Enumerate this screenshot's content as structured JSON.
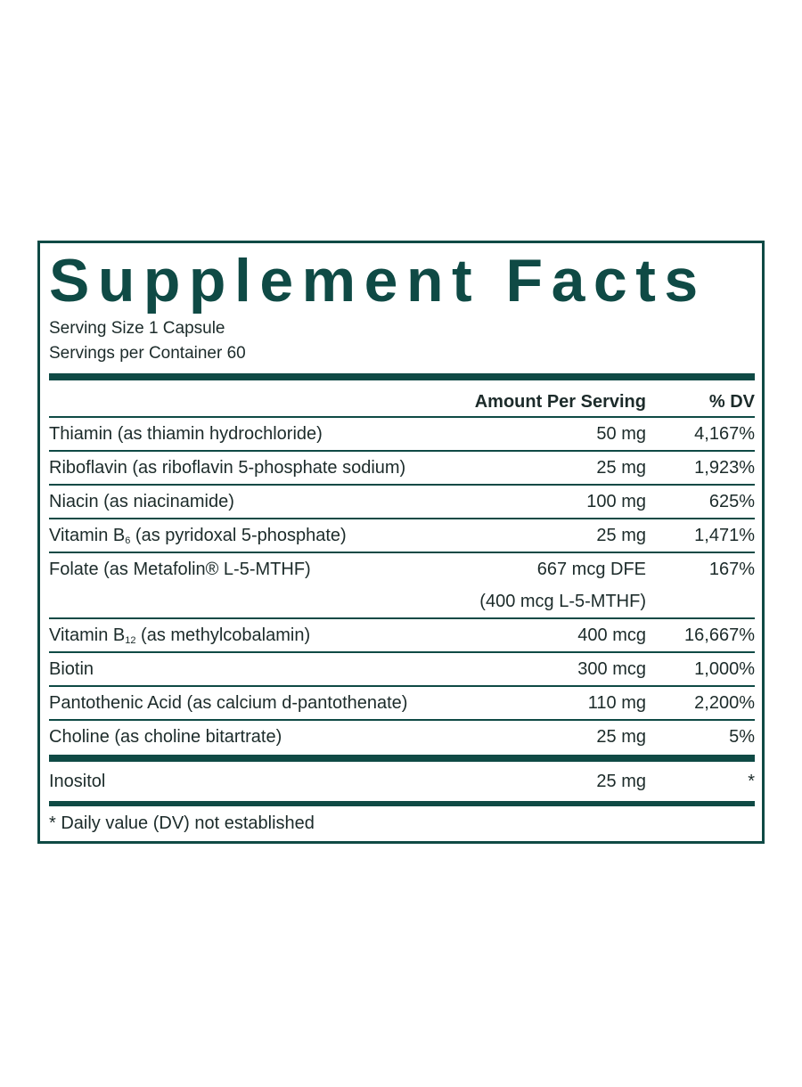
{
  "title": "Supplement Facts",
  "serving_size": "Serving Size 1 Capsule",
  "servings_per_container": "Servings per Container 60",
  "header": {
    "amount": "Amount Per Serving",
    "dv": "% DV"
  },
  "rows": [
    {
      "name": [
        "Thiamin (as thiamin hydrochloride)"
      ],
      "amount": [
        "50 mg"
      ],
      "dv": "4,167%"
    },
    {
      "name": [
        "Riboflavin (as riboflavin 5-phosphate sodium)"
      ],
      "amount": [
        "25 mg"
      ],
      "dv": "1,923%"
    },
    {
      "name": [
        "Niacin (as niacinamide)"
      ],
      "amount": [
        "100 mg"
      ],
      "dv": "625%"
    },
    {
      "name": [
        "Vitamin B",
        "6",
        " (as pyridoxal 5-phosphate)"
      ],
      "amount": [
        "25 mg"
      ],
      "dv": "1,471%"
    },
    {
      "name": [
        "Folate (as Metafolin® L-5-MTHF)"
      ],
      "amount": [
        "667 mcg DFE",
        "(400 mcg L-5-MTHF)"
      ],
      "dv": "167%"
    },
    {
      "name": [
        "Vitamin B",
        "12",
        " (as methylcobalamin)"
      ],
      "amount": [
        "400 mcg"
      ],
      "dv": "16,667%"
    },
    {
      "name": [
        "Biotin"
      ],
      "amount": [
        "300 mcg"
      ],
      "dv": "1,000%"
    },
    {
      "name": [
        "Pantothenic Acid (as calcium d-pantothenate)"
      ],
      "amount": [
        "110 mg"
      ],
      "dv": "2,200%"
    },
    {
      "name": [
        "Choline (as choline bitartrate)"
      ],
      "amount": [
        "25 mg"
      ],
      "dv": "5%"
    }
  ],
  "other_rows": [
    {
      "name": [
        "Inositol"
      ],
      "amount": [
        "25 mg"
      ],
      "dv": "*"
    }
  ],
  "footnote": "* Daily value (DV) not established"
}
